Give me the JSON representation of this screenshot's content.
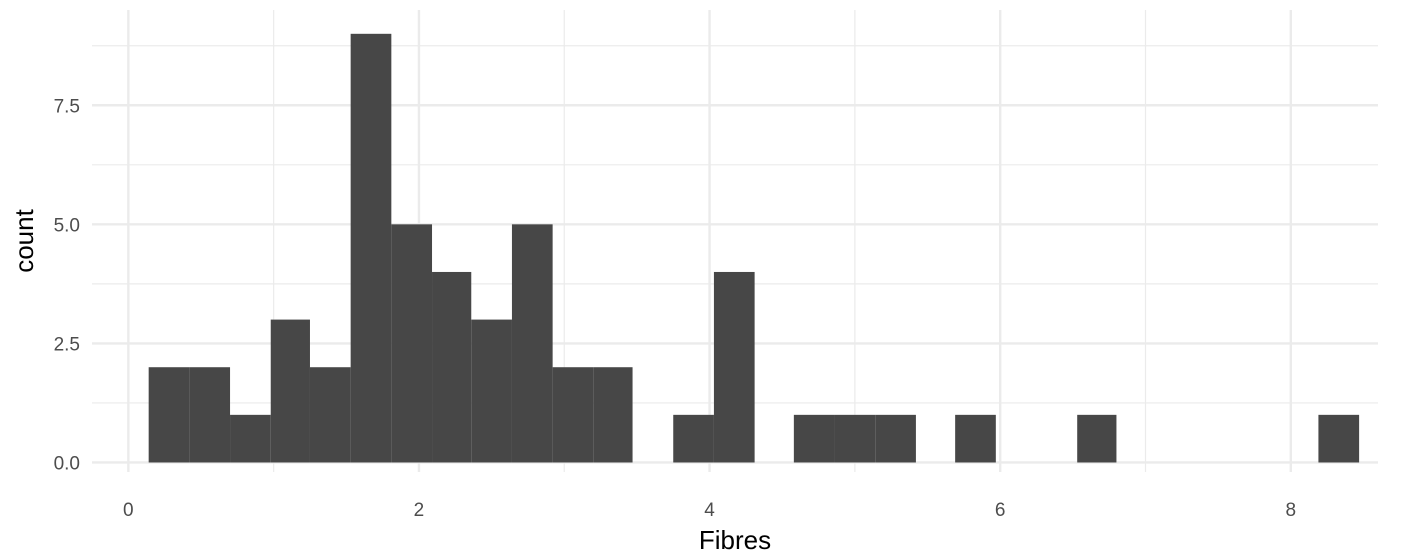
{
  "chart_data": {
    "type": "bar",
    "subtype": "histogram",
    "title": "",
    "xlabel": "Fibres",
    "ylabel": "count",
    "xlim": [
      -0.25,
      8.6
    ],
    "ylim": [
      -0.2,
      9.5
    ],
    "x_ticks": [
      0,
      2,
      4,
      6,
      8
    ],
    "x_tick_labels": [
      "0",
      "2",
      "4",
      "6",
      "8"
    ],
    "y_ticks": [
      0,
      2.5,
      5,
      7.5
    ],
    "y_tick_labels": [
      "0.0",
      "2.5",
      "5.0",
      "7.5"
    ],
    "x_minor_ticks": [
      1,
      3,
      5,
      7
    ],
    "y_minor_ticks": [
      1.25,
      3.75,
      6.25,
      8.75
    ],
    "grid": true,
    "bar_color": "#474747",
    "bins": [
      {
        "x0": 0.14,
        "x1": 0.42,
        "count": 2
      },
      {
        "x0": 0.42,
        "x1": 0.7,
        "count": 2
      },
      {
        "x0": 0.7,
        "x1": 0.98,
        "count": 1
      },
      {
        "x0": 0.98,
        "x1": 1.25,
        "count": 3
      },
      {
        "x0": 1.25,
        "x1": 1.53,
        "count": 2
      },
      {
        "x0": 1.53,
        "x1": 1.81,
        "count": 9
      },
      {
        "x0": 1.81,
        "x1": 2.09,
        "count": 5
      },
      {
        "x0": 2.09,
        "x1": 2.36,
        "count": 4
      },
      {
        "x0": 2.36,
        "x1": 2.64,
        "count": 3
      },
      {
        "x0": 2.64,
        "x1": 2.92,
        "count": 5
      },
      {
        "x0": 2.92,
        "x1": 3.2,
        "count": 2
      },
      {
        "x0": 3.2,
        "x1": 3.47,
        "count": 2
      },
      {
        "x0": 3.47,
        "x1": 3.75,
        "count": 0
      },
      {
        "x0": 3.75,
        "x1": 4.03,
        "count": 1
      },
      {
        "x0": 4.03,
        "x1": 4.31,
        "count": 4
      },
      {
        "x0": 4.31,
        "x1": 4.58,
        "count": 0
      },
      {
        "x0": 4.58,
        "x1": 4.86,
        "count": 1
      },
      {
        "x0": 4.86,
        "x1": 5.14,
        "count": 1
      },
      {
        "x0": 5.14,
        "x1": 5.42,
        "count": 1
      },
      {
        "x0": 5.42,
        "x1": 5.69,
        "count": 0
      },
      {
        "x0": 5.69,
        "x1": 5.97,
        "count": 1
      },
      {
        "x0": 5.97,
        "x1": 6.25,
        "count": 0
      },
      {
        "x0": 6.25,
        "x1": 6.53,
        "count": 0
      },
      {
        "x0": 6.53,
        "x1": 6.8,
        "count": 1
      },
      {
        "x0": 6.8,
        "x1": 7.08,
        "count": 0
      },
      {
        "x0": 7.08,
        "x1": 7.36,
        "count": 0
      },
      {
        "x0": 7.36,
        "x1": 7.64,
        "count": 0
      },
      {
        "x0": 7.64,
        "x1": 7.91,
        "count": 0
      },
      {
        "x0": 7.91,
        "x1": 8.19,
        "count": 0
      },
      {
        "x0": 8.19,
        "x1": 8.47,
        "count": 1
      }
    ]
  }
}
